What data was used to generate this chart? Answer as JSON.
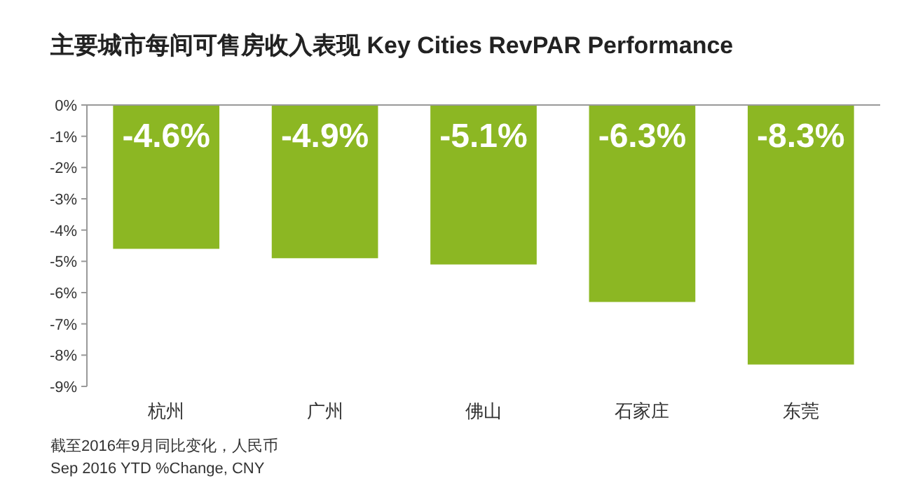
{
  "chart_data": {
    "type": "bar",
    "title": "主要城市每间可售房收入表现 Key Cities RevPAR Performance",
    "categories": [
      "杭州",
      "广州",
      "佛山",
      "石家庄",
      "东莞"
    ],
    "values": [
      -4.6,
      -4.9,
      -5.1,
      -6.3,
      -8.3
    ],
    "value_labels": [
      "-4.6%",
      "-4.9%",
      "-5.1%",
      "-6.3%",
      "-8.3%"
    ],
    "color": "#8cb723",
    "ylim": [
      -9,
      0
    ],
    "yticks": [
      {
        "value": 0,
        "label": "0%"
      },
      {
        "value": -1,
        "label": "-1%"
      },
      {
        "value": -2,
        "label": "-2%"
      },
      {
        "value": -3,
        "label": "-3%"
      },
      {
        "value": -4,
        "label": "-4%"
      },
      {
        "value": -5,
        "label": "-5%"
      },
      {
        "value": -6,
        "label": "-6%"
      },
      {
        "value": -7,
        "label": "-7%"
      },
      {
        "value": -8,
        "label": "-8%"
      },
      {
        "value": -9,
        "label": "-9%"
      }
    ],
    "annotations": [
      "截至2016年9月同比变化，人民币",
      "Sep 2016 YTD %Change, CNY"
    ]
  }
}
